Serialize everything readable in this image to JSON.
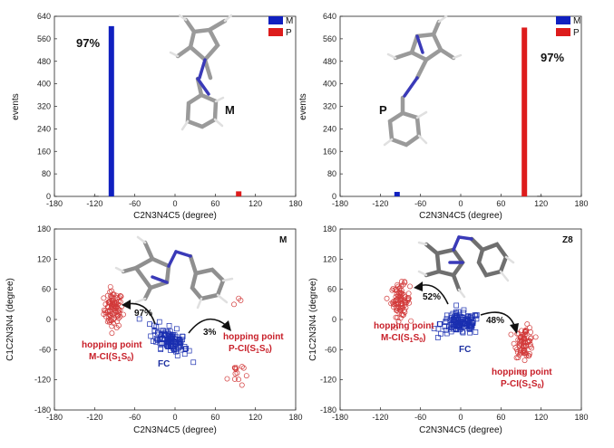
{
  "colors": {
    "M": "#1020c0",
    "P": "#dd1c1c",
    "scatter_red": "#d23a3a",
    "scatter_blue": "#1a2fb0",
    "atom_N": "#3a3ab8",
    "atom_C": "#8a8a8a",
    "atom_H": "#dcdcdc"
  },
  "chart_data": [
    {
      "type": "bar",
      "xlabel": "C2N3N4C5 (degree)",
      "ylabel": "events",
      "xlim": [
        -180,
        180
      ],
      "ylim": [
        0,
        640
      ],
      "xticks": [
        "-180",
        "-120",
        "-60",
        "0",
        "60",
        "120",
        "180"
      ],
      "yticks": [
        "0",
        "80",
        "160",
        "240",
        "320",
        "400",
        "480",
        "560",
        "640"
      ],
      "legend": [
        "M",
        "P"
      ],
      "legend_position": "top-right",
      "series": [
        {
          "name": "M",
          "x": [
            -118,
            -95
          ],
          "values": [
            2,
            605
          ]
        },
        {
          "name": "P",
          "x": [
            95
          ],
          "values": [
            18
          ]
        }
      ],
      "annotations": {
        "percent": "97%",
        "isomer": "M"
      }
    },
    {
      "type": "bar",
      "xlabel": "C2N3N4C5 (degree)",
      "ylabel": "events",
      "xlim": [
        -180,
        180
      ],
      "ylim": [
        0,
        640
      ],
      "xticks": [
        "-180",
        "-120",
        "-60",
        "0",
        "60",
        "120",
        "180"
      ],
      "yticks": [
        "0",
        "80",
        "160",
        "240",
        "320",
        "400",
        "480",
        "560",
        "640"
      ],
      "legend": [
        "M",
        "P"
      ],
      "legend_position": "top-right",
      "series": [
        {
          "name": "M",
          "x": [
            -95
          ],
          "values": [
            16
          ]
        },
        {
          "name": "P",
          "x": [
            95,
            118
          ],
          "values": [
            600,
            2
          ]
        }
      ],
      "annotations": {
        "percent": "97%",
        "isomer": "P"
      }
    },
    {
      "type": "scatter",
      "xlabel": "C2N3N4C5 (degree)",
      "ylabel": "C1C2N3N4",
      "ylabel_unit": "(degree)",
      "xlim": [
        -180,
        180
      ],
      "ylim": [
        -180,
        180
      ],
      "xticks": [
        "-180",
        "-120",
        "-60",
        "0",
        "60",
        "120",
        "180"
      ],
      "yticks": [
        "-180",
        "-120",
        "-60",
        "0",
        "60",
        "120",
        "180"
      ],
      "corner_label": "M",
      "clusters": [
        {
          "type": "M-CI",
          "center": [
            -92,
            20
          ],
          "spread": [
            7,
            18
          ],
          "count": 95
        },
        {
          "type": "FC",
          "center": [
            -8,
            -40
          ],
          "spread": [
            13,
            12
          ],
          "count": 120,
          "tilt": -0.6
        },
        {
          "type": "P-CI",
          "center": [
            90,
            -108
          ],
          "spread": [
            6,
            14
          ],
          "count": 13
        },
        {
          "type": "P-CI",
          "points": [
            [
              88,
              30
            ],
            [
              98,
              38
            ],
            [
              95,
              42
            ]
          ]
        }
      ],
      "annotations": {
        "arrow_left_pct": "97%",
        "arrow_right_pct": "3%",
        "hop_left_title": "hopping point",
        "hop_left_label": "M-CI(S",
        "hop_left_sub1": "1",
        "hop_left_mid": "S",
        "hop_left_sub0": "0",
        "hop_left_end": ")",
        "hop_right_title": "hopping point",
        "hop_right_label": "P-CI(S",
        "hop_right_sub1": "1",
        "hop_right_mid": "S",
        "hop_right_sub0": "0",
        "hop_right_end": ")",
        "fc": "FC"
      }
    },
    {
      "type": "scatter",
      "xlabel": "C2N3N4C5 (degree)",
      "ylabel": "C1C2N3N4",
      "ylabel_unit": "(degree)",
      "xlim": [
        -180,
        180
      ],
      "ylim": [
        -180,
        180
      ],
      "xticks": [
        "-180",
        "-120",
        "-60",
        "0",
        "60",
        "120",
        "180"
      ],
      "yticks": [
        "-180",
        "-120",
        "-60",
        "0",
        "60",
        "120",
        "180"
      ],
      "corner_label": "Z8",
      "clusters": [
        {
          "type": "M-CI",
          "center": [
            -90,
            38
          ],
          "spread": [
            7,
            16
          ],
          "count": 90
        },
        {
          "type": "FC",
          "center": [
            0,
            -8
          ],
          "spread": [
            15,
            11
          ],
          "count": 130,
          "tilt": 0
        },
        {
          "type": "P-CI",
          "center": [
            95,
            -45
          ],
          "spread": [
            7,
            15
          ],
          "count": 80
        }
      ],
      "annotations": {
        "arrow_left_pct": "52%",
        "arrow_right_pct": "48%",
        "hop_left_title": "hopping point",
        "hop_left_label": "M-CI(S",
        "hop_left_sub1": "1",
        "hop_left_mid": "S",
        "hop_left_sub0": "0",
        "hop_left_end": ")",
        "hop_right_title": "hopping point",
        "hop_right_label": "P-CI(S",
        "hop_right_sub1": "1",
        "hop_right_mid": "S",
        "hop_right_sub0": "0",
        "hop_right_end": ")",
        "fc": "FC"
      }
    }
  ]
}
